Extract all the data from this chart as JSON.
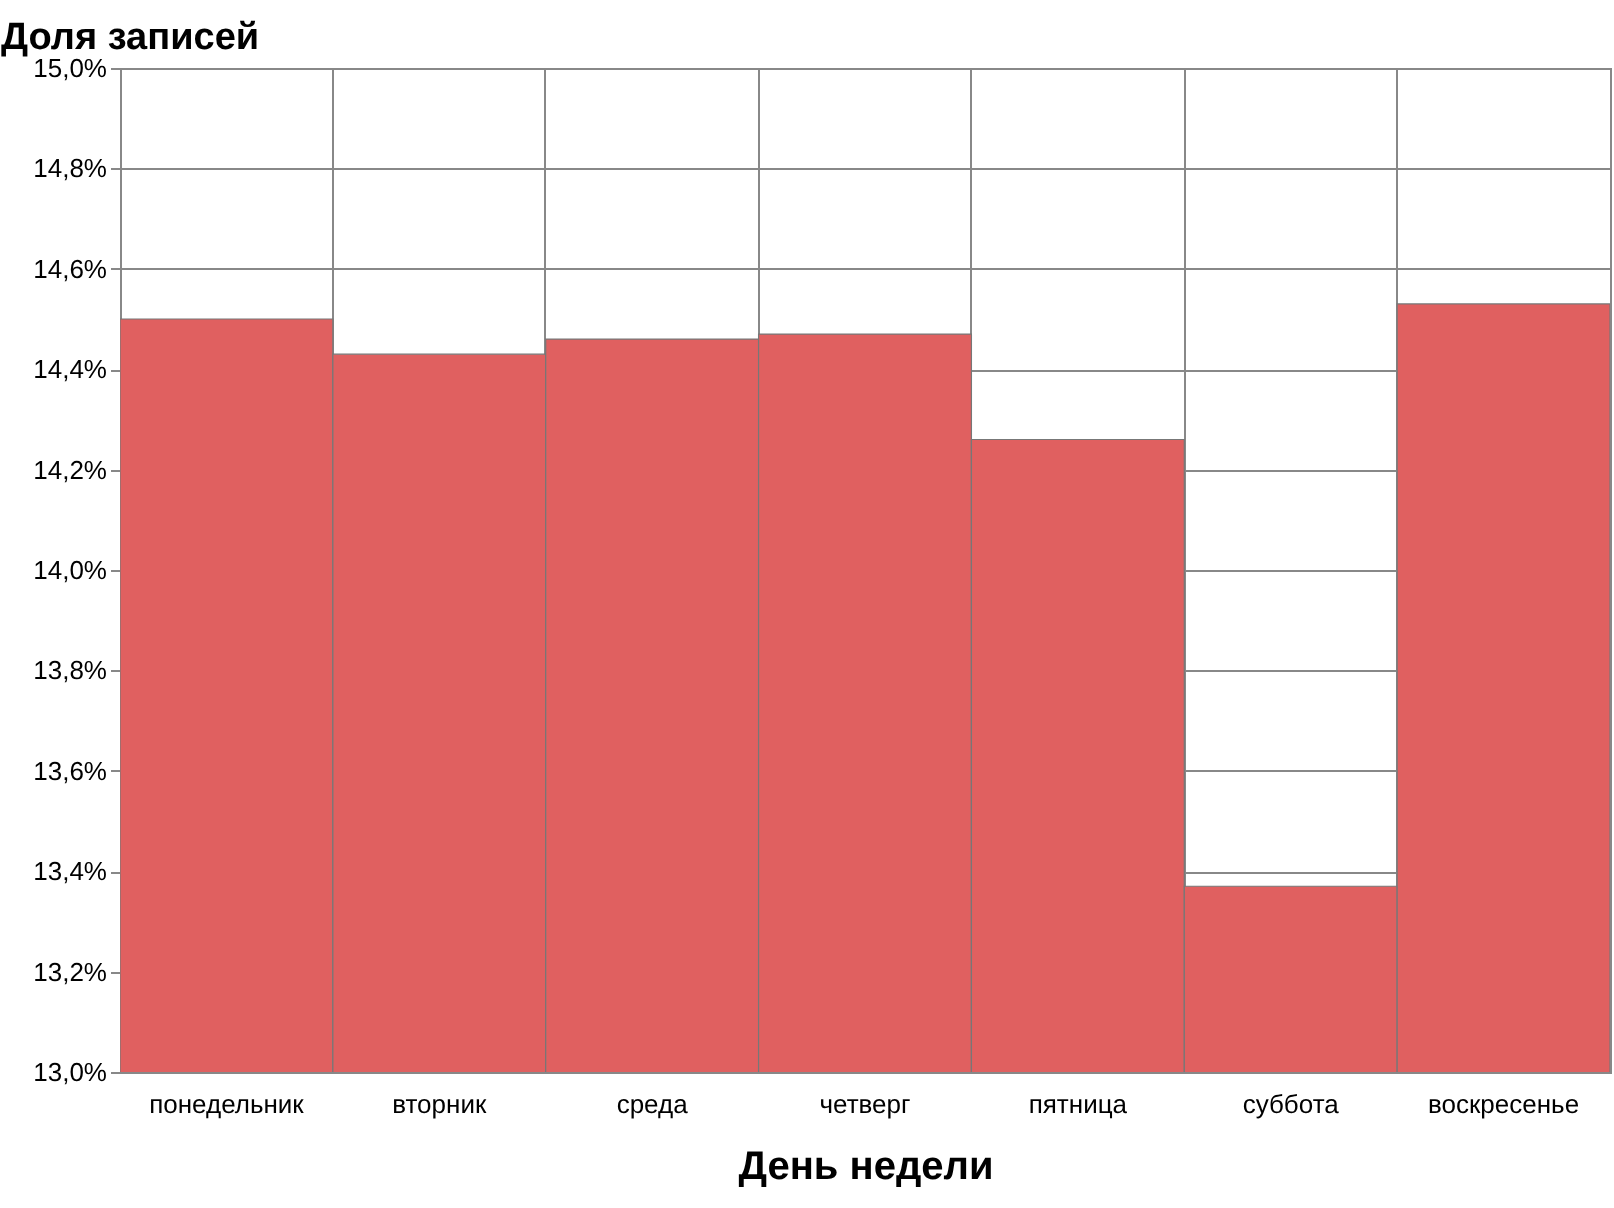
{
  "chart_data": {
    "type": "bar",
    "ylabel": "Доля записей",
    "xlabel": "День недели",
    "categories": [
      "понедельник",
      "вторник",
      "среда",
      "четверг",
      "пятница",
      "суббота",
      "воскресенье"
    ],
    "values": [
      14.5,
      14.43,
      14.46,
      14.47,
      14.26,
      13.37,
      14.53
    ],
    "color": "#e06060",
    "ylim": [
      13,
      15
    ],
    "yticks": [
      {
        "value": 13,
        "label": "13,0%"
      },
      {
        "value": 13.2,
        "label": "13,2%"
      },
      {
        "value": 13.4,
        "label": "13,4%"
      },
      {
        "value": 13.6,
        "label": "13,6%"
      },
      {
        "value": 13.8,
        "label": "13,8%"
      },
      {
        "value": 14,
        "label": "14,0%"
      },
      {
        "value": 14.2,
        "label": "14,2%"
      },
      {
        "value": 14.4,
        "label": "14,4%"
      },
      {
        "value": 14.6,
        "label": "14,6%"
      },
      {
        "value": 14.8,
        "label": "14,8%"
      },
      {
        "value": 15,
        "label": "15,0%"
      }
    ],
    "grid": true
  }
}
